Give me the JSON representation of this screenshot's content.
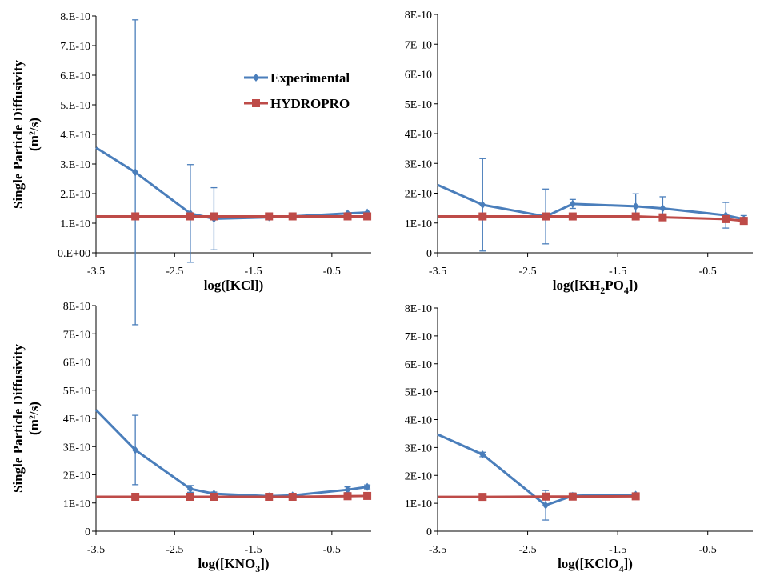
{
  "colors": {
    "experimental": "#4a7ebb",
    "hydropro": "#be4b48",
    "axis": "#000000"
  },
  "y_axis_label": {
    "line1": "Single Particle Diffusivity",
    "line2": "(m²/s)"
  },
  "chart_data": [
    {
      "type": "line",
      "xlabel": {
        "prefix": "log([KCl])",
        "sub": "",
        "suffix": ""
      },
      "xlim": [
        -3.5,
        0
      ],
      "ylim": [
        0,
        8e-10
      ],
      "xticks": [
        -3.5,
        -2.5,
        -1.5,
        -0.5
      ],
      "xtick_labels": [
        "-3.5",
        "-2.5",
        "-1.5",
        "-0.5"
      ],
      "yticks": [
        0,
        1e-10,
        2e-10,
        3e-10,
        4e-10,
        5e-10,
        6e-10,
        7e-10,
        8e-10
      ],
      "ytick_labels": [
        "0.E+00",
        "1.E-10",
        "2.E-10",
        "3.E-10",
        "4.E-10",
        "5.E-10",
        "6.E-10",
        "7.E-10",
        "8.E-10"
      ],
      "legend": {
        "placement": "top-right",
        "entries": [
          "Experimental",
          "HYDROPRO"
        ]
      },
      "series": [
        {
          "name": "Experimental",
          "x": [
            -3.5,
            -3.0,
            -2.3,
            -2.0,
            -1.3,
            -1.0,
            -0.3,
            -0.05
          ],
          "y": [
            3.55e-10,
            2.72e-10,
            1.33e-10,
            1.15e-10,
            1.2e-10,
            1.23e-10,
            1.33e-10,
            1.36e-10
          ],
          "err": [
            0,
            5.15e-10,
            1.65e-10,
            1.05e-10,
            0,
            0,
            0,
            0
          ]
        },
        {
          "name": "HYDROPRO",
          "x": [
            -3.5,
            -3.0,
            -2.3,
            -2.0,
            -1.3,
            -1.0,
            -0.3,
            -0.05
          ],
          "y": [
            1.23e-10,
            1.23e-10,
            1.23e-10,
            1.23e-10,
            1.23e-10,
            1.23e-10,
            1.23e-10,
            1.23e-10
          ]
        }
      ]
    },
    {
      "type": "line",
      "xlabel": {
        "prefix": "log([KH",
        "sub": "2",
        "mid": "PO",
        "sub2": "4",
        "suffix": "])"
      },
      "xlim": [
        -3.5,
        0
      ],
      "ylim": [
        0,
        8e-10
      ],
      "xticks": [
        -3.5,
        -2.5,
        -1.5,
        -0.5
      ],
      "xtick_labels": [
        "-3.5",
        "-2.5",
        "-1.5",
        "-0.5"
      ],
      "yticks": [
        0,
        1e-10,
        2e-10,
        3e-10,
        4e-10,
        5e-10,
        6e-10,
        7e-10,
        8e-10
      ],
      "ytick_labels": [
        "0",
        "1E-10",
        "2E-10",
        "3E-10",
        "4E-10",
        "5E-10",
        "6E-10",
        "7E-10",
        "8E-10"
      ],
      "series": [
        {
          "name": "Experimental",
          "x": [
            -3.5,
            -3.0,
            -2.3,
            -2.0,
            -1.3,
            -1.0,
            -0.3,
            -0.1
          ],
          "y": [
            2.28e-10,
            1.61e-10,
            1.22e-10,
            1.64e-10,
            1.56e-10,
            1.49e-10,
            1.26e-10,
            1.13e-10
          ],
          "err": [
            0,
            1.55e-10,
            9.2e-11,
            1.5e-11,
            4.2e-11,
            3.9e-11,
            4.3e-11,
            1.2e-11
          ]
        },
        {
          "name": "HYDROPRO",
          "x": [
            -3.5,
            -3.0,
            -2.3,
            -2.0,
            -1.3,
            -1.0,
            -0.3,
            -0.1
          ],
          "y": [
            1.22e-10,
            1.22e-10,
            1.22e-10,
            1.22e-10,
            1.22e-10,
            1.19e-10,
            1.13e-10,
            1.07e-10
          ]
        }
      ]
    },
    {
      "type": "line",
      "xlabel": {
        "prefix": "log([KNO",
        "sub": "3",
        "suffix": "])"
      },
      "xlim": [
        -3.5,
        0
      ],
      "ylim": [
        0,
        8e-10
      ],
      "xticks": [
        -3.5,
        -2.5,
        -1.5,
        -0.5
      ],
      "xtick_labels": [
        "-3.5",
        "-2.5",
        "-1.5",
        "-0.5"
      ],
      "yticks": [
        0,
        1e-10,
        2e-10,
        3e-10,
        4e-10,
        5e-10,
        6e-10,
        7e-10,
        8e-10
      ],
      "ytick_labels": [
        "0",
        "1E-10",
        "2E-10",
        "3E-10",
        "4E-10",
        "5E-10",
        "6E-10",
        "7E-10",
        "8E-10"
      ],
      "series": [
        {
          "name": "Experimental",
          "x": [
            -3.5,
            -3.0,
            -2.3,
            -2.0,
            -1.3,
            -1.0,
            -0.3,
            -0.05
          ],
          "y": [
            4.3e-10,
            2.88e-10,
            1.5e-10,
            1.33e-10,
            1.24e-10,
            1.27e-10,
            1.47e-10,
            1.57e-10
          ],
          "err": [
            0,
            1.23e-10,
            1.2e-11,
            6e-12,
            0,
            5e-12,
            1e-11,
            7e-12
          ]
        },
        {
          "name": "HYDROPRO",
          "x": [
            -3.5,
            -3.0,
            -2.3,
            -2.0,
            -1.3,
            -1.0,
            -0.3,
            -0.05
          ],
          "y": [
            1.22e-10,
            1.22e-10,
            1.22e-10,
            1.22e-10,
            1.22e-10,
            1.22e-10,
            1.24e-10,
            1.25e-10
          ]
        }
      ]
    },
    {
      "type": "line",
      "xlabel": {
        "prefix": "log([KClO",
        "sub": "4",
        "suffix": "])"
      },
      "xlim": [
        -3.5,
        0
      ],
      "ylim": [
        0,
        8e-10
      ],
      "xticks": [
        -3.5,
        -2.5,
        -1.5,
        -0.5
      ],
      "xtick_labels": [
        "-3.5",
        "-2.5",
        "-1.5",
        "-0.5"
      ],
      "yticks": [
        0,
        1e-10,
        2e-10,
        3e-10,
        4e-10,
        5e-10,
        6e-10,
        7e-10,
        8e-10
      ],
      "ytick_labels": [
        "0",
        "1E-10",
        "2E-10",
        "3E-10",
        "4E-10",
        "5E-10",
        "6E-10",
        "7E-10",
        "8E-10"
      ],
      "series": [
        {
          "name": "Experimental",
          "x": [
            -3.5,
            -3.0,
            -2.3,
            -2.0,
            -1.3
          ],
          "y": [
            3.47e-10,
            2.75e-10,
            9.3e-11,
            1.27e-10,
            1.31e-10
          ],
          "err": [
            0,
            8e-12,
            5.3e-11,
            1e-11,
            4e-12
          ]
        },
        {
          "name": "HYDROPRO",
          "x": [
            -3.5,
            -3.0,
            -2.3,
            -2.0,
            -1.3
          ],
          "y": [
            1.23e-10,
            1.23e-10,
            1.24e-10,
            1.24e-10,
            1.25e-10
          ]
        }
      ]
    }
  ]
}
